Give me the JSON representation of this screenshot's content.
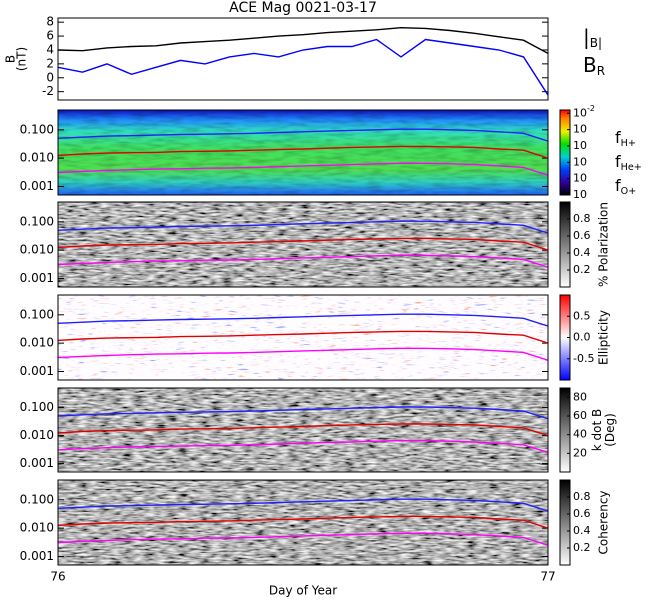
{
  "chart_data": [
    {
      "type": "line",
      "title": "ACE Mag 0021-03-17",
      "ylabel": [
        "B",
        "(nT)"
      ],
      "x": [
        76,
        76.05,
        76.1,
        76.15,
        76.2,
        76.25,
        76.3,
        76.35,
        76.4,
        76.45,
        76.5,
        76.55,
        76.6,
        76.65,
        76.7,
        76.75,
        76.8,
        76.85,
        76.9,
        76.95,
        77
      ],
      "xlim": [
        76,
        77
      ],
      "ylim": [
        -3.2,
        8.6
      ],
      "yticks": [
        -2,
        0,
        2,
        4,
        6,
        8
      ],
      "series": [
        {
          "name": "|B|",
          "color": "#000000",
          "values": [
            4.0,
            3.9,
            4.3,
            4.5,
            4.6,
            5.0,
            5.2,
            5.4,
            5.7,
            6.0,
            6.2,
            6.5,
            6.7,
            6.9,
            7.2,
            7.1,
            6.8,
            6.4,
            5.9,
            5.4,
            3.5
          ]
        },
        {
          "name": "BR",
          "color": "#0000ff",
          "values": [
            1.5,
            0.8,
            2.0,
            0.5,
            1.5,
            2.5,
            2.0,
            3.0,
            3.5,
            3.0,
            4.0,
            4.5,
            4.5,
            5.5,
            3.0,
            5.5,
            5.0,
            4.5,
            4.0,
            3.0,
            -2.5
          ]
        }
      ]
    },
    {
      "type": "spectrogram",
      "log": true,
      "colormap": "rainbow",
      "x": [
        76,
        76.05,
        76.1,
        76.15,
        76.2,
        76.25,
        76.3,
        76.35,
        76.4,
        76.45,
        76.5,
        76.55,
        76.6,
        76.65,
        76.7,
        76.75,
        76.8,
        76.85,
        76.9,
        76.95,
        77
      ],
      "xlim": [
        76,
        77
      ],
      "ylim": [
        0.0005,
        0.5
      ],
      "yticks": [
        0.001,
        {
          "value": 0.01,
          "label": "0.010"
        },
        {
          "value": 0.1,
          "label": "0.100"
        }
      ],
      "colorbar": {
        "lim": [
          -7,
          -1.8
        ],
        "ticks": [
          {
            "value": -2,
            "label": "10",
            "exponent": "-2"
          },
          {
            "value": -3,
            "label": "10"
          },
          {
            "value": -4,
            "label": "10"
          },
          {
            "value": -5,
            "label": "10"
          },
          {
            "value": -6,
            "label": "10"
          },
          {
            "value": -7,
            "label": "10"
          }
        ]
      },
      "series": [
        {
          "name": "fH+",
          "color": "#2020ff",
          "values": [
            0.05,
            0.055,
            0.06,
            0.062,
            0.065,
            0.068,
            0.07,
            0.072,
            0.075,
            0.08,
            0.085,
            0.09,
            0.095,
            0.1,
            0.105,
            0.105,
            0.1,
            0.095,
            0.085,
            0.075,
            0.04
          ]
        },
        {
          "name": "fHe+",
          "color": "#e00000",
          "values": [
            0.0125,
            0.014,
            0.015,
            0.0155,
            0.016,
            0.017,
            0.0175,
            0.018,
            0.019,
            0.02,
            0.021,
            0.0225,
            0.024,
            0.025,
            0.026,
            0.026,
            0.025,
            0.024,
            0.021,
            0.019,
            0.01
          ]
        },
        {
          "name": "fO+",
          "color": "#ff00ff",
          "values": [
            0.0031,
            0.0034,
            0.0037,
            0.0039,
            0.0041,
            0.0042,
            0.0044,
            0.0045,
            0.0047,
            0.005,
            0.0053,
            0.0056,
            0.0059,
            0.0063,
            0.0066,
            0.0066,
            0.0063,
            0.0059,
            0.0053,
            0.0047,
            0.0025
          ]
        }
      ]
    },
    {
      "type": "spectrogram",
      "log": true,
      "colormap": "gray",
      "x": [
        76,
        76.05,
        76.1,
        76.15,
        76.2,
        76.25,
        76.3,
        76.35,
        76.4,
        76.45,
        76.5,
        76.55,
        76.6,
        76.65,
        76.7,
        76.75,
        76.8,
        76.85,
        76.9,
        76.95,
        77
      ],
      "xlim": [
        76,
        77
      ],
      "ylim": [
        0.0005,
        0.5
      ],
      "yticks": [
        0.001,
        {
          "value": 0.01,
          "label": "0.010"
        },
        {
          "value": 0.1,
          "label": "0.100"
        }
      ],
      "colorbar": {
        "label": [
          "% Polarization"
        ],
        "lim": [
          0,
          1
        ],
        "ticks": [
          0.2,
          0.4,
          0.6,
          0.8
        ]
      },
      "series": [
        {
          "color": "#2020ff",
          "values": [
            0.05,
            0.055,
            0.06,
            0.062,
            0.065,
            0.068,
            0.07,
            0.072,
            0.075,
            0.08,
            0.085,
            0.09,
            0.095,
            0.1,
            0.105,
            0.105,
            0.1,
            0.095,
            0.085,
            0.075,
            0.04
          ]
        },
        {
          "color": "#e00000",
          "values": [
            0.0125,
            0.014,
            0.015,
            0.0155,
            0.016,
            0.017,
            0.0175,
            0.018,
            0.019,
            0.02,
            0.021,
            0.0225,
            0.024,
            0.025,
            0.026,
            0.026,
            0.025,
            0.024,
            0.021,
            0.019,
            0.01
          ]
        },
        {
          "color": "#ff00ff",
          "values": [
            0.0031,
            0.0034,
            0.0037,
            0.0039,
            0.0041,
            0.0042,
            0.0044,
            0.0045,
            0.0047,
            0.005,
            0.0053,
            0.0056,
            0.0059,
            0.0063,
            0.0066,
            0.0066,
            0.0063,
            0.0059,
            0.0053,
            0.0047,
            0.0025
          ]
        }
      ]
    },
    {
      "type": "spectrogram",
      "log": true,
      "colormap": "bwr",
      "x": [
        76,
        76.05,
        76.1,
        76.15,
        76.2,
        76.25,
        76.3,
        76.35,
        76.4,
        76.45,
        76.5,
        76.55,
        76.6,
        76.65,
        76.7,
        76.75,
        76.8,
        76.85,
        76.9,
        76.95,
        77
      ],
      "xlim": [
        76,
        77
      ],
      "ylim": [
        0.0005,
        0.5
      ],
      "yticks": [
        0.001,
        {
          "value": 0.01,
          "label": "0.010"
        },
        {
          "value": 0.1,
          "label": "0.100"
        }
      ],
      "colorbar": {
        "label": [
          "Ellipticity"
        ],
        "lim": [
          -1,
          1
        ],
        "ticks": [
          -0.5,
          {
            "value": 0,
            "label": "0.0"
          },
          0.5
        ]
      },
      "series": [
        {
          "color": "#2020ff",
          "values": [
            0.05,
            0.055,
            0.06,
            0.062,
            0.065,
            0.068,
            0.07,
            0.072,
            0.075,
            0.08,
            0.085,
            0.09,
            0.095,
            0.1,
            0.105,
            0.105,
            0.1,
            0.095,
            0.085,
            0.075,
            0.04
          ]
        },
        {
          "color": "#e00000",
          "values": [
            0.0125,
            0.014,
            0.015,
            0.0155,
            0.016,
            0.017,
            0.0175,
            0.018,
            0.019,
            0.02,
            0.021,
            0.0225,
            0.024,
            0.025,
            0.026,
            0.026,
            0.025,
            0.024,
            0.021,
            0.019,
            0.01
          ]
        },
        {
          "color": "#ff00ff",
          "values": [
            0.0031,
            0.0034,
            0.0037,
            0.0039,
            0.0041,
            0.0042,
            0.0044,
            0.0045,
            0.0047,
            0.005,
            0.0053,
            0.0056,
            0.0059,
            0.0063,
            0.0066,
            0.0066,
            0.0063,
            0.0059,
            0.0053,
            0.0047,
            0.0025
          ]
        }
      ]
    },
    {
      "type": "spectrogram",
      "log": true,
      "colormap": "gray",
      "x": [
        76,
        76.05,
        76.1,
        76.15,
        76.2,
        76.25,
        76.3,
        76.35,
        76.4,
        76.45,
        76.5,
        76.55,
        76.6,
        76.65,
        76.7,
        76.75,
        76.8,
        76.85,
        76.9,
        76.95,
        77
      ],
      "xlim": [
        76,
        77
      ],
      "ylim": [
        0.0005,
        0.5
      ],
      "yticks": [
        0.001,
        {
          "value": 0.01,
          "label": "0.010"
        },
        {
          "value": 0.1,
          "label": "0.100"
        }
      ],
      "colorbar": {
        "label": [
          "k dot B",
          "(Deg)"
        ],
        "lim": [
          0,
          90
        ],
        "ticks": [
          20,
          40,
          60,
          80
        ]
      },
      "series": [
        {
          "color": "#2020ff",
          "values": [
            0.05,
            0.055,
            0.06,
            0.062,
            0.065,
            0.068,
            0.07,
            0.072,
            0.075,
            0.08,
            0.085,
            0.09,
            0.095,
            0.1,
            0.105,
            0.105,
            0.1,
            0.095,
            0.085,
            0.075,
            0.04
          ]
        },
        {
          "color": "#e00000",
          "values": [
            0.0125,
            0.014,
            0.015,
            0.0155,
            0.016,
            0.017,
            0.0175,
            0.018,
            0.019,
            0.02,
            0.021,
            0.0225,
            0.024,
            0.025,
            0.026,
            0.026,
            0.025,
            0.024,
            0.021,
            0.019,
            0.01
          ]
        },
        {
          "color": "#ff00ff",
          "values": [
            0.0031,
            0.0034,
            0.0037,
            0.0039,
            0.0041,
            0.0042,
            0.0044,
            0.0045,
            0.0047,
            0.005,
            0.0053,
            0.0056,
            0.0059,
            0.0063,
            0.0066,
            0.0066,
            0.0063,
            0.0059,
            0.0053,
            0.0047,
            0.0025
          ]
        }
      ]
    },
    {
      "type": "spectrogram",
      "log": true,
      "colormap": "gray",
      "x": [
        76,
        76.05,
        76.1,
        76.15,
        76.2,
        76.25,
        76.3,
        76.35,
        76.4,
        76.45,
        76.5,
        76.55,
        76.6,
        76.65,
        76.7,
        76.75,
        76.8,
        76.85,
        76.9,
        76.95,
        77
      ],
      "xlim": [
        76,
        77
      ],
      "xticks": [
        76,
        77
      ],
      "xlabel": "Day of Year",
      "ylim": [
        0.0005,
        0.5
      ],
      "yticks": [
        0.001,
        {
          "value": 0.01,
          "label": "0.010"
        },
        {
          "value": 0.1,
          "label": "0.100"
        }
      ],
      "colorbar": {
        "label": [
          "Coherency"
        ],
        "lim": [
          0,
          1
        ],
        "ticks": [
          0.2,
          0.4,
          0.6,
          0.8
        ]
      },
      "series": [
        {
          "color": "#2020ff",
          "values": [
            0.05,
            0.055,
            0.06,
            0.062,
            0.065,
            0.068,
            0.07,
            0.072,
            0.075,
            0.08,
            0.085,
            0.09,
            0.095,
            0.1,
            0.105,
            0.105,
            0.1,
            0.095,
            0.085,
            0.075,
            0.04
          ]
        },
        {
          "color": "#e00000",
          "values": [
            0.0125,
            0.014,
            0.015,
            0.0155,
            0.016,
            0.017,
            0.0175,
            0.018,
            0.019,
            0.02,
            0.021,
            0.0225,
            0.024,
            0.025,
            0.026,
            0.026,
            0.025,
            0.024,
            0.021,
            0.019,
            0.01
          ]
        },
        {
          "color": "#ff00ff",
          "values": [
            0.0031,
            0.0034,
            0.0037,
            0.0039,
            0.0041,
            0.0042,
            0.0044,
            0.0045,
            0.0047,
            0.005,
            0.0053,
            0.0056,
            0.0059,
            0.0063,
            0.0066,
            0.0066,
            0.0063,
            0.0059,
            0.0053,
            0.0047,
            0.0025
          ]
        }
      ]
    }
  ]
}
